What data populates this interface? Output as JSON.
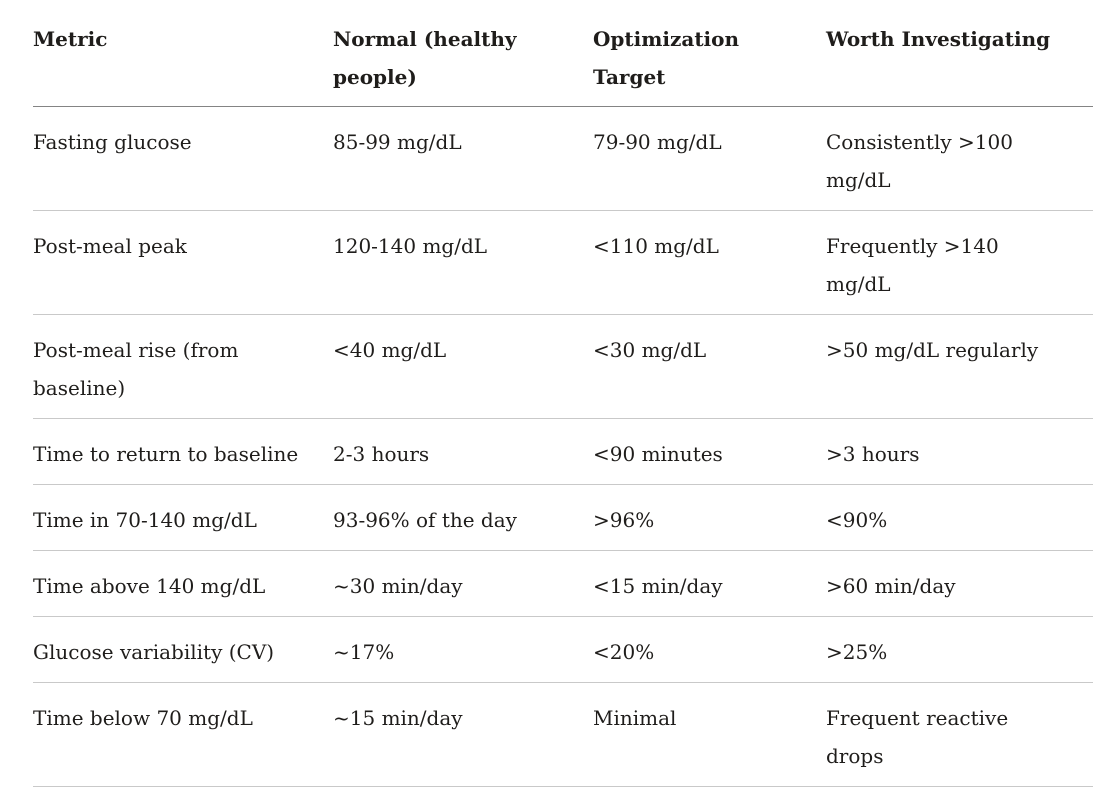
{
  "table": {
    "title": "glucose-metrics-reference-table",
    "colors": {
      "background": "#ffffff",
      "text": "#1f1d1b",
      "header_rule": "#848484",
      "row_rule": "#c9c9c9"
    },
    "columns": [
      {
        "label": "Metric"
      },
      {
        "label": "Normal (healthy people)"
      },
      {
        "label": "Optimization Target"
      },
      {
        "label": "Worth Investigating"
      }
    ],
    "rows": [
      [
        "Fasting glucose",
        "85-99 mg/dL",
        "79-90 mg/dL",
        "Consistently >100 mg/dL"
      ],
      [
        "Post-meal peak",
        "120-140 mg/dL",
        "<110 mg/dL",
        "Frequently >140 mg/dL"
      ],
      [
        "Post-meal rise (from baseline)",
        "<40 mg/dL",
        "<30 mg/dL",
        ">50 mg/dL regularly"
      ],
      [
        "Time to return to baseline",
        "2-3 hours",
        "<90 minutes",
        ">3 hours"
      ],
      [
        "Time in 70-140 mg/dL",
        "93-96% of the day",
        ">96%",
        "<90%"
      ],
      [
        "Time above 140 mg/dL",
        "~30 min/day",
        "<15 min/day",
        ">60 min/day"
      ],
      [
        "Glucose variability (CV)",
        "~17%",
        "<20%",
        ">25%"
      ],
      [
        "Time below 70 mg/dL",
        "~15 min/day",
        "Minimal",
        "Frequent reactive drops"
      ]
    ]
  }
}
